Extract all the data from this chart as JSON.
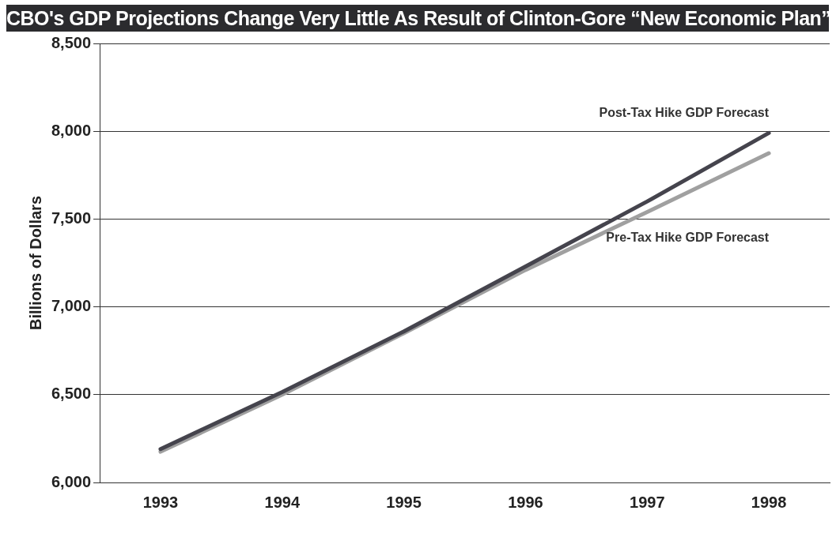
{
  "chart_data": {
    "type": "line",
    "title": "CBO's GDP Projections Change Very Little  As Result of Clinton-Gore “New Economic Plan”",
    "ylabel": "Billions of Dollars",
    "categories": [
      "1993",
      "1994",
      "1995",
      "1996",
      "1997",
      "1998"
    ],
    "series": [
      {
        "name": "Post-Tax Hike GDP Forecast",
        "color": "#45444d",
        "values": [
          6190,
          6515,
          6860,
          7230,
          7600,
          7990
        ]
      },
      {
        "name": "Pre-Tax Hike GDP Forecast",
        "color": "#a0a0a0",
        "values": [
          6175,
          6500,
          6850,
          7210,
          7540,
          7875
        ]
      }
    ],
    "ylim": [
      6000,
      8500
    ],
    "yticks": [
      {
        "value": 6000,
        "label": "6,000"
      },
      {
        "value": 6500,
        "label": "6,500"
      },
      {
        "value": 7000,
        "label": "7,000"
      },
      {
        "value": 7500,
        "label": "7,500"
      },
      {
        "value": 8000,
        "label": "8,000"
      },
      {
        "value": 8500,
        "label": "8,500"
      }
    ],
    "grid": "y",
    "legend": false,
    "marker": "none",
    "line_style": "solid"
  }
}
